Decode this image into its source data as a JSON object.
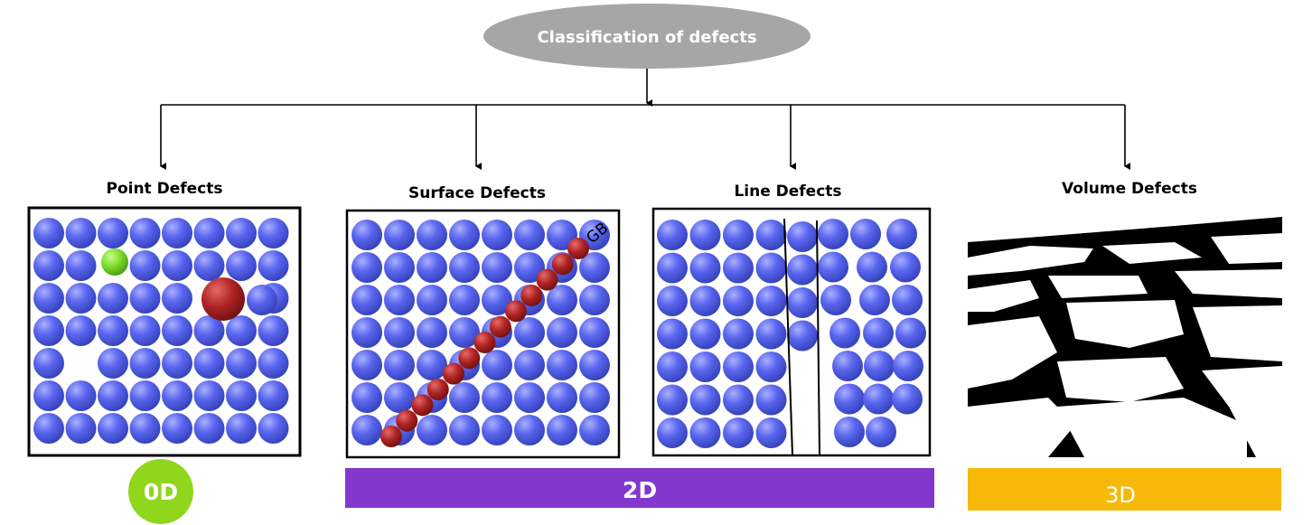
{
  "root": {
    "label": "Classification of defects",
    "color": "#a6a6a6"
  },
  "categories": [
    {
      "label": "Point Defects"
    },
    {
      "label": "Surface Defects",
      "annotation": "GB"
    },
    {
      "label": "Line Defects"
    },
    {
      "label": "Volume Defects"
    }
  ],
  "dimensions": [
    {
      "label": "0D",
      "color": "#8fd61c"
    },
    {
      "label": "2D",
      "color": "#8437cc"
    },
    {
      "label": "3D",
      "color": "#f6b90a"
    }
  ],
  "colors": {
    "atom": "#5560e8",
    "interstitial": "#7ddc2a",
    "substitutional": "#b02424"
  }
}
